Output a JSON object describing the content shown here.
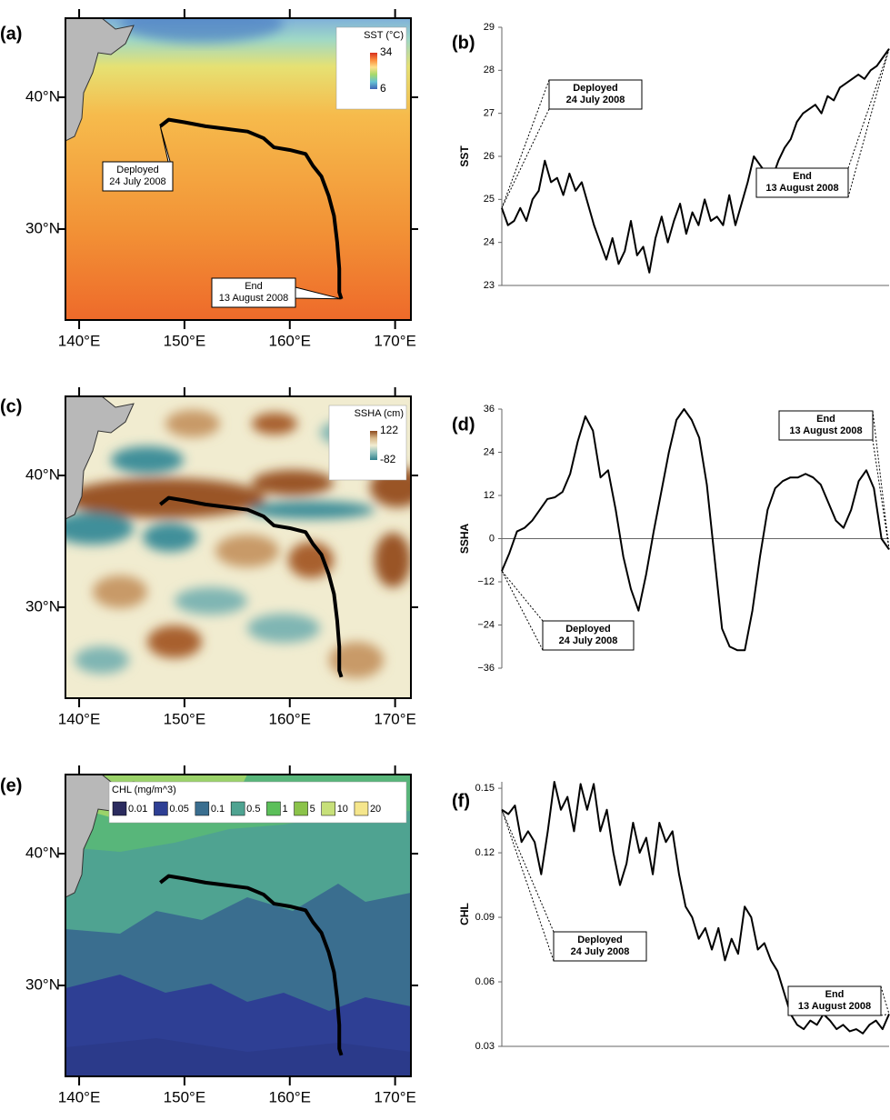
{
  "chart_data": [
    {
      "type": "map",
      "label": "(a)",
      "xlim": [
        138.7,
        171.5
      ],
      "ylim": [
        23.1,
        46
      ],
      "xticks": [
        {
          "value": 140,
          "label": "140°E"
        },
        {
          "value": 150,
          "label": "150°E"
        },
        {
          "value": 160,
          "label": "160°E"
        },
        {
          "value": 170,
          "label": "170°E"
        }
      ],
      "yticks": [
        {
          "value": 40,
          "label": "40°N"
        },
        {
          "value": 30,
          "label": "30°N"
        }
      ],
      "legend": {
        "title": "SST (°C)",
        "ticks": [
          34,
          6
        ],
        "colors": [
          "#d7301f",
          "#fc8d3c",
          "#fee08b",
          "#a6d96a",
          "#66c2d4",
          "#3f63b5"
        ]
      },
      "track": {
        "color": "#000000",
        "x": [
          147.7,
          148.5,
          150,
          152,
          154,
          156,
          157.5,
          158.5,
          160,
          161.5,
          162.2,
          163,
          163.7,
          164.2,
          164.5,
          164.7,
          164.7,
          164.9
        ],
        "y": [
          37.8,
          38.3,
          38.1,
          37.8,
          37.6,
          37.4,
          36.9,
          36.2,
          36.0,
          35.7,
          34.8,
          34.0,
          32.5,
          31.0,
          29.0,
          27.0,
          25.2,
          24.7
        ]
      },
      "annotations": [
        {
          "lines": [
            "Deployed",
            "24 July 2008"
          ]
        },
        {
          "lines": [
            "End",
            "13 August 2008"
          ]
        }
      ]
    },
    {
      "type": "line",
      "label": "(b)",
      "ylabel": "SST",
      "color": "#000000",
      "ylim": [
        23,
        29
      ],
      "yticks": [
        23,
        24,
        25,
        26,
        27,
        28,
        29
      ],
      "x_axis_line": true,
      "values": [
        24.8,
        24.4,
        24.5,
        24.8,
        24.5,
        25.0,
        25.2,
        25.9,
        25.4,
        25.5,
        25.1,
        25.6,
        25.2,
        25.4,
        24.9,
        24.4,
        24.0,
        23.6,
        24.1,
        23.5,
        23.8,
        24.5,
        23.7,
        23.9,
        23.3,
        24.1,
        24.6,
        24.0,
        24.5,
        24.9,
        24.2,
        24.7,
        24.4,
        25.0,
        24.5,
        24.6,
        24.4,
        25.1,
        24.4,
        24.9,
        25.4,
        26.0,
        25.8,
        25.6,
        25.5,
        25.9,
        26.2,
        26.4,
        26.8,
        27.0,
        27.1,
        27.2,
        27.0,
        27.4,
        27.3,
        27.6,
        27.7,
        27.8,
        27.9,
        27.8,
        28.0,
        28.1,
        28.3,
        28.5
      ],
      "annotations": [
        {
          "lines": [
            "Deployed",
            "24 July 2008"
          ]
        },
        {
          "lines": [
            "End",
            "13 August 2008"
          ]
        }
      ]
    },
    {
      "type": "map",
      "label": "(c)",
      "xlim": [
        138.7,
        171.5
      ],
      "ylim": [
        23.1,
        46
      ],
      "xticks": [
        {
          "value": 140,
          "label": "140°E"
        },
        {
          "value": 150,
          "label": "150°E"
        },
        {
          "value": 160,
          "label": "160°E"
        },
        {
          "value": 170,
          "label": "170°E"
        }
      ],
      "yticks": [
        {
          "value": 40,
          "label": "40°N"
        },
        {
          "value": 30,
          "label": "30°N"
        }
      ],
      "legend": {
        "title": "SSHA (cm)",
        "ticks": [
          122,
          -82
        ],
        "colors": [
          "#8c4a1e",
          "#d9b98a",
          "#f2edd2",
          "#8fc0bc",
          "#2f7f8c"
        ]
      },
      "track": {
        "color": "#000000",
        "x": [
          147.7,
          148.5,
          150,
          152,
          154,
          156,
          157.5,
          158.5,
          160,
          161.5,
          162.2,
          163,
          163.7,
          164.2,
          164.5,
          164.7,
          164.7,
          164.9
        ],
        "y": [
          37.8,
          38.3,
          38.1,
          37.8,
          37.6,
          37.4,
          36.9,
          36.2,
          36.0,
          35.7,
          34.8,
          34.0,
          32.5,
          31.0,
          29.0,
          27.0,
          25.2,
          24.7
        ]
      }
    },
    {
      "type": "line",
      "label": "(d)",
      "ylabel": "SSHA",
      "color": "#000000",
      "ylim": [
        -36,
        36
      ],
      "yticks": [
        {
          "value": -36,
          "label": "−36"
        },
        {
          "value": -24,
          "label": "−24"
        },
        {
          "value": -12,
          "label": "−12"
        },
        0,
        12,
        24,
        36
      ],
      "zero_line": true,
      "values": [
        -9,
        -4,
        2,
        3,
        5,
        8,
        11,
        11.5,
        13,
        18,
        27,
        34,
        30,
        17,
        19,
        8,
        -5,
        -14,
        -20,
        -10,
        2,
        13,
        24,
        33,
        36,
        33,
        28,
        15,
        -5,
        -25,
        -30,
        -31,
        -31,
        -20,
        -5,
        8,
        14,
        16,
        17,
        17,
        18,
        17,
        15,
        10,
        5,
        3,
        8,
        16,
        19,
        14,
        0,
        -3
      ],
      "annotations": [
        {
          "lines": [
            "Deployed",
            "24 July 2008"
          ]
        },
        {
          "lines": [
            "End",
            "13 August 2008"
          ]
        }
      ]
    },
    {
      "type": "map",
      "label": "(e)",
      "xlim": [
        138.7,
        171.5
      ],
      "ylim": [
        23.1,
        46
      ],
      "xticks": [
        {
          "value": 140,
          "label": "140°E"
        },
        {
          "value": 150,
          "label": "150°E"
        },
        {
          "value": 160,
          "label": "160°E"
        },
        {
          "value": 170,
          "label": "170°E"
        }
      ],
      "yticks": [
        {
          "value": 40,
          "label": "40°N"
        },
        {
          "value": 30,
          "label": "30°N"
        }
      ],
      "legend": {
        "title": "CHL (mg/m^3)",
        "levels": [
          0.01,
          0.05,
          0.1,
          0.5,
          1,
          5,
          10,
          20
        ],
        "colors": [
          "#2b2b5e",
          "#2e3f94",
          "#3a6e8f",
          "#4fa391",
          "#5cbf5a",
          "#8bc34a",
          "#c7e07a",
          "#f5e68c"
        ]
      },
      "track": {
        "color": "#000000",
        "x": [
          147.7,
          148.5,
          150,
          152,
          154,
          156,
          157.5,
          158.5,
          160,
          161.5,
          162.2,
          163,
          163.7,
          164.2,
          164.5,
          164.7,
          164.7,
          164.9
        ],
        "y": [
          37.8,
          38.3,
          38.1,
          37.8,
          37.6,
          37.4,
          36.9,
          36.2,
          36.0,
          35.7,
          34.8,
          34.0,
          32.5,
          31.0,
          29.0,
          27.0,
          25.2,
          24.7
        ]
      }
    },
    {
      "type": "line",
      "label": "(f)",
      "ylabel": "CHL",
      "color": "#000000",
      "ylim": [
        0.03,
        0.153
      ],
      "yticks": [
        0.03,
        0.06,
        0.09,
        0.12,
        0.15
      ],
      "x_axis_line": true,
      "values": [
        0.14,
        0.138,
        0.142,
        0.125,
        0.13,
        0.125,
        0.11,
        0.13,
        0.153,
        0.14,
        0.146,
        0.13,
        0.152,
        0.14,
        0.152,
        0.13,
        0.14,
        0.12,
        0.105,
        0.115,
        0.134,
        0.12,
        0.127,
        0.11,
        0.134,
        0.125,
        0.13,
        0.11,
        0.095,
        0.09,
        0.08,
        0.085,
        0.075,
        0.085,
        0.07,
        0.08,
        0.073,
        0.095,
        0.09,
        0.075,
        0.078,
        0.07,
        0.065,
        0.055,
        0.045,
        0.04,
        0.038,
        0.042,
        0.04,
        0.045,
        0.042,
        0.038,
        0.04,
        0.037,
        0.038,
        0.036,
        0.04,
        0.042,
        0.038,
        0.045
      ],
      "annotations": [
        {
          "lines": [
            "Deployed",
            "24 July 2008"
          ]
        },
        {
          "lines": [
            "End",
            "13 August 2008"
          ]
        }
      ]
    }
  ]
}
